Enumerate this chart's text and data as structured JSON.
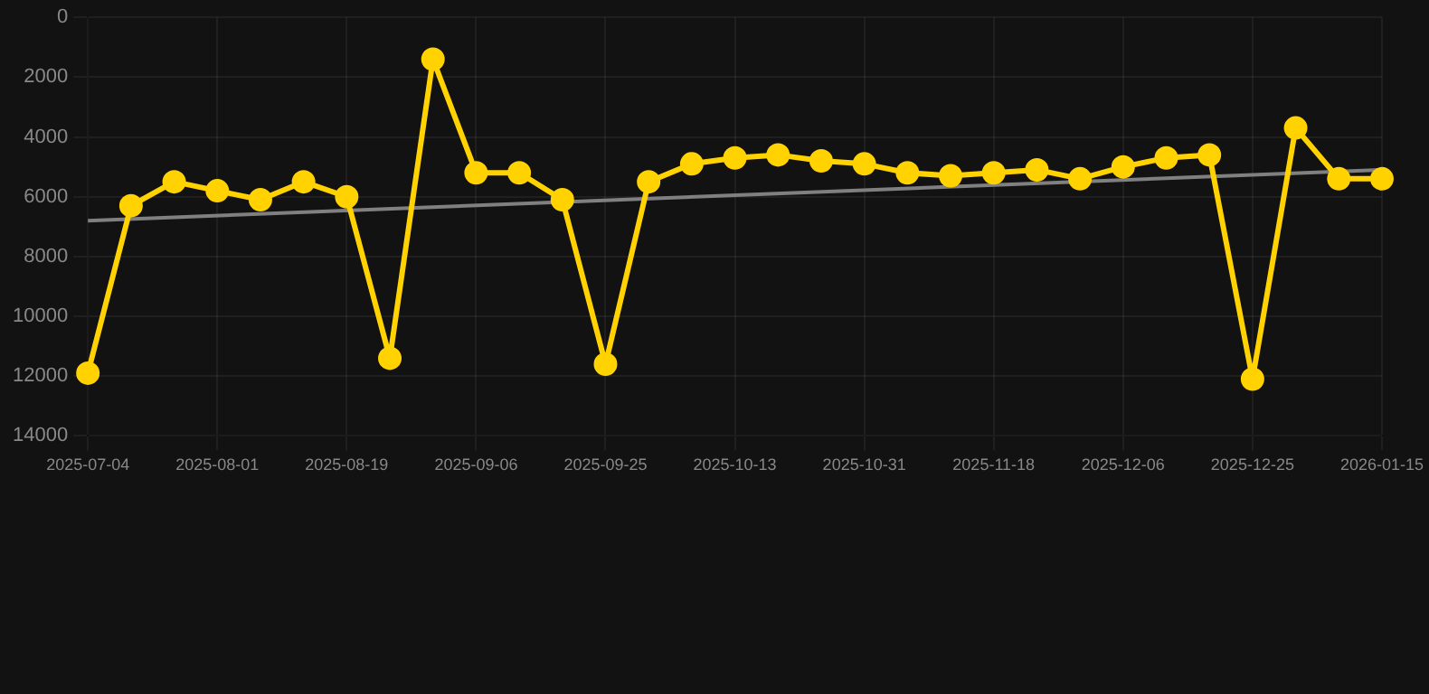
{
  "chart_data": {
    "type": "line",
    "categories": [
      "2025-07-04",
      null,
      null,
      "2025-08-01",
      null,
      null,
      "2025-08-19",
      null,
      null,
      "2025-09-06",
      null,
      null,
      "2025-09-25",
      null,
      null,
      "2025-10-13",
      null,
      null,
      "2025-10-31",
      null,
      null,
      "2025-11-18",
      null,
      null,
      "2025-12-06",
      null,
      null,
      "2025-12-25",
      null,
      null,
      "2026-01-15"
    ],
    "series": [
      {
        "color": "#ffd200",
        "marker": "circle",
        "values": [
          11900,
          6300,
          5500,
          5800,
          6100,
          5500,
          6000,
          11400,
          1400,
          5200,
          5200,
          6100,
          11600,
          5500,
          4900,
          4700,
          4600,
          4800,
          4900,
          5200,
          5300,
          5200,
          5100,
          5400,
          5000,
          4700,
          4600,
          12100,
          3700,
          5400,
          5400
        ]
      },
      {
        "type": "line",
        "color": "#808080",
        "marker": "none",
        "values": [
          6800,
          null,
          null,
          null,
          null,
          null,
          null,
          null,
          null,
          null,
          null,
          null,
          null,
          null,
          null,
          null,
          null,
          null,
          null,
          null,
          null,
          null,
          null,
          null,
          null,
          null,
          null,
          null,
          null,
          null,
          5100
        ]
      }
    ],
    "ylim": [
      14000,
      0
    ],
    "yticks": [
      0,
      2000,
      4000,
      6000,
      8000,
      10000,
      12000,
      14000
    ],
    "grid": true,
    "legend": false
  }
}
